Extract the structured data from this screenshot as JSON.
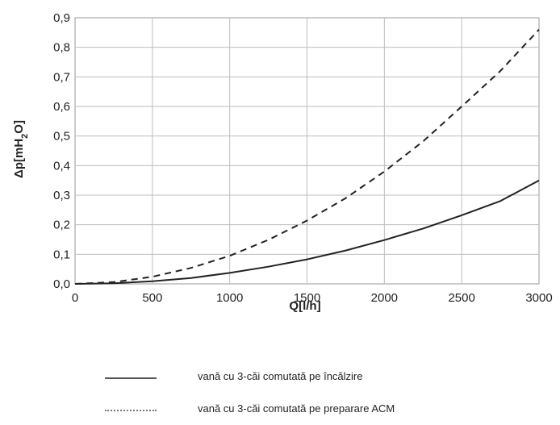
{
  "chart_data": {
    "type": "line",
    "xlabel": "Q[l/h]",
    "ylabel_parts": {
      "pre": "Δp[mH",
      "sub": "2",
      "post": "O]"
    },
    "xlim": [
      0,
      3000
    ],
    "ylim": [
      0,
      0.9
    ],
    "x_ticks": [
      0,
      500,
      1000,
      1500,
      2000,
      2500,
      3000
    ],
    "x_tick_labels": [
      "0",
      "500",
      "1000",
      "1500",
      "2000",
      "2500",
      "3000"
    ],
    "y_ticks": [
      0,
      0.1,
      0.2,
      0.3,
      0.4,
      0.5,
      0.6,
      0.7,
      0.8,
      0.9
    ],
    "y_tick_labels": [
      "0,0",
      "0,1",
      "0,2",
      "0,3",
      "0,4",
      "0,5",
      "0,6",
      "0,7",
      "0,8",
      "0,9"
    ],
    "grid": true,
    "legend_position": "bottom",
    "series": [
      {
        "name": "vană cu 3-căi comutată pe încălzire",
        "style": "solid",
        "color": "#222222",
        "x": [
          0,
          250,
          500,
          750,
          1000,
          1250,
          1500,
          1750,
          2000,
          2250,
          2500,
          2750,
          3000
        ],
        "y": [
          0,
          0.002,
          0.009,
          0.02,
          0.037,
          0.058,
          0.083,
          0.113,
          0.148,
          0.187,
          0.232,
          0.28,
          0.35
        ]
      },
      {
        "name": "vană cu 3-căi comutată pe preparare ACM",
        "style": "dashed",
        "color": "#222222",
        "x": [
          0,
          250,
          500,
          750,
          1000,
          1250,
          1500,
          1750,
          2000,
          2250,
          2500,
          2750,
          3000
        ],
        "y": [
          0,
          0.006,
          0.024,
          0.054,
          0.095,
          0.149,
          0.214,
          0.29,
          0.38,
          0.482,
          0.6,
          0.72,
          0.86
        ]
      }
    ]
  }
}
